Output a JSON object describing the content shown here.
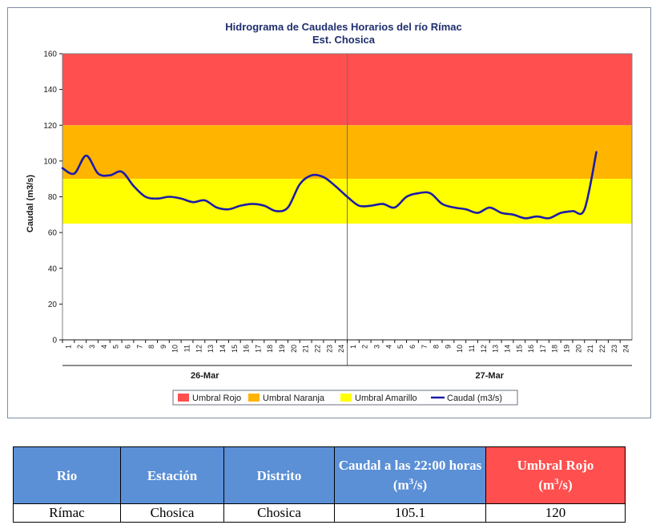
{
  "chart_data": {
    "type": "line",
    "title": "Hidrograma de Caudales Horarios del río Rímac",
    "subtitle": "Est. Chosica",
    "ylabel": "Caudal  (m3/s)",
    "ylim": [
      0,
      160
    ],
    "yticks": [
      "0",
      "20",
      "40",
      "60",
      "80",
      "100",
      "120",
      "140",
      "160"
    ],
    "xticks": [
      "1",
      "2",
      "3",
      "4",
      "5",
      "6",
      "7",
      "8",
      "9",
      "10",
      "11",
      "12",
      "13",
      "14",
      "15",
      "16",
      "17",
      "18",
      "19",
      "20",
      "21",
      "22",
      "23",
      "24",
      "1",
      "2",
      "3",
      "4",
      "5",
      "6",
      "7",
      "8",
      "9",
      "10",
      "11",
      "12",
      "13",
      "14",
      "15",
      "16",
      "17",
      "18",
      "19",
      "20",
      "21",
      "22",
      "23",
      "24"
    ],
    "days": [
      "26-Mar",
      "27-Mar"
    ],
    "bands": [
      {
        "name": "Umbral Rojo",
        "from": 120,
        "to": 160,
        "color": "#ff4f4f"
      },
      {
        "name": "Umbral Naranja",
        "from": 90,
        "to": 120,
        "color": "#ffb400"
      },
      {
        "name": "Umbral Amarillo",
        "from": 65,
        "to": 90,
        "color": "#ffff00"
      }
    ],
    "series": [
      {
        "name": "Caudal (m3/s)",
        "color": "#1c1ca8",
        "values": [
          96,
          93,
          103,
          93,
          92,
          94,
          86,
          80,
          79,
          80,
          79,
          77,
          78,
          74,
          73,
          75,
          76,
          75,
          72,
          74,
          87,
          92,
          91,
          86,
          80,
          75,
          75,
          76,
          74,
          80,
          82,
          82,
          76,
          74,
          73,
          71,
          74,
          71,
          70,
          68,
          69,
          68,
          71,
          72,
          73,
          105
        ]
      }
    ],
    "legend": [
      "Umbral Rojo",
      "Umbral Naranja",
      "Umbral Amarillo",
      "Caudal (m3/s)"
    ],
    "legend_position": "bottom"
  },
  "table": {
    "headers": [
      "Rio",
      "Estación",
      "Distrito",
      "Caudal a las 22:00 horas",
      "(m",
      "/s)",
      "Umbral Rojo",
      "(m",
      "/s)"
    ],
    "sup": "3",
    "row": [
      "Rímac",
      "Chosica",
      "Chosica",
      "105.1",
      "120"
    ]
  }
}
